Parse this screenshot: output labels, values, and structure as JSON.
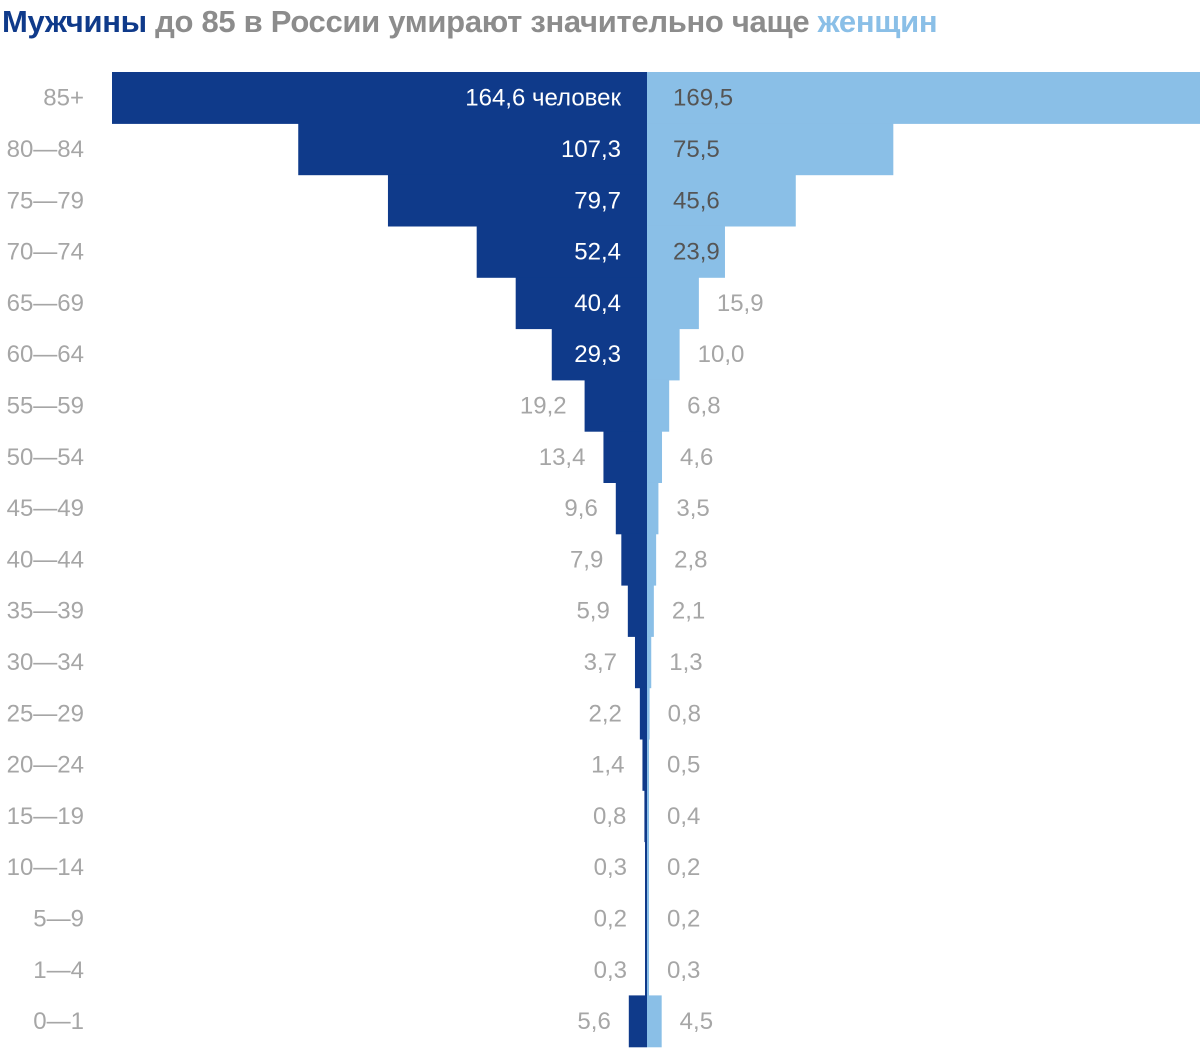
{
  "title": {
    "men": "Мужчины",
    "middle": " до 85 в России умирают значительно чаще ",
    "women": "женщин"
  },
  "colors": {
    "men": "#0f3a8a",
    "women": "#8abfe7",
    "label_light": "#a6a6a6",
    "label_dark_on_light": "#555555",
    "label_on_dark": "#ffffff",
    "category": "#a6a6a6",
    "title_gray": "#8c8c8c"
  },
  "chart_data": {
    "type": "bar",
    "orientation": "horizontal-population-pyramid",
    "title": "Мужчины до 85 в России умирают значительно чаще женщин",
    "categories": [
      "85+",
      "80—84",
      "75—79",
      "70—74",
      "65—69",
      "60—64",
      "55—59",
      "50—54",
      "45—49",
      "40—44",
      "35—39",
      "30—34",
      "25—29",
      "20—24",
      "15—19",
      "10—14",
      "5—9",
      "1—4",
      "0—1"
    ],
    "series": [
      {
        "name": "Мужчины",
        "side": "left",
        "values": [
          164.6,
          107.3,
          79.7,
          52.4,
          40.4,
          29.3,
          19.2,
          13.4,
          9.6,
          7.9,
          5.9,
          3.7,
          2.2,
          1.4,
          0.8,
          0.3,
          0.2,
          0.3,
          5.6
        ],
        "labels": [
          "164,6 человек",
          "107,3",
          "79,7",
          "52,4",
          "40,4",
          "29,3",
          "19,2",
          "13,4",
          "9,6",
          "7,9",
          "5,9",
          "3,7",
          "2,2",
          "1,4",
          "0,8",
          "0,3",
          "0,2",
          "0,3",
          "5,6"
        ]
      },
      {
        "name": "Женщины",
        "side": "right",
        "values": [
          169.5,
          75.5,
          45.6,
          23.9,
          15.9,
          10.0,
          6.8,
          4.6,
          3.5,
          2.8,
          2.1,
          1.3,
          0.8,
          0.5,
          0.4,
          0.2,
          0.2,
          0.3,
          4.5
        ],
        "labels": [
          "169,5",
          "75,5",
          "45,6",
          "23,9",
          "15,9",
          "10,0",
          "6,8",
          "4,6",
          "3,5",
          "2,8",
          "2,1",
          "1,3",
          "0,8",
          "0,5",
          "0,4",
          "0,2",
          "0,2",
          "0,3",
          "4,5"
        ]
      }
    ]
  }
}
